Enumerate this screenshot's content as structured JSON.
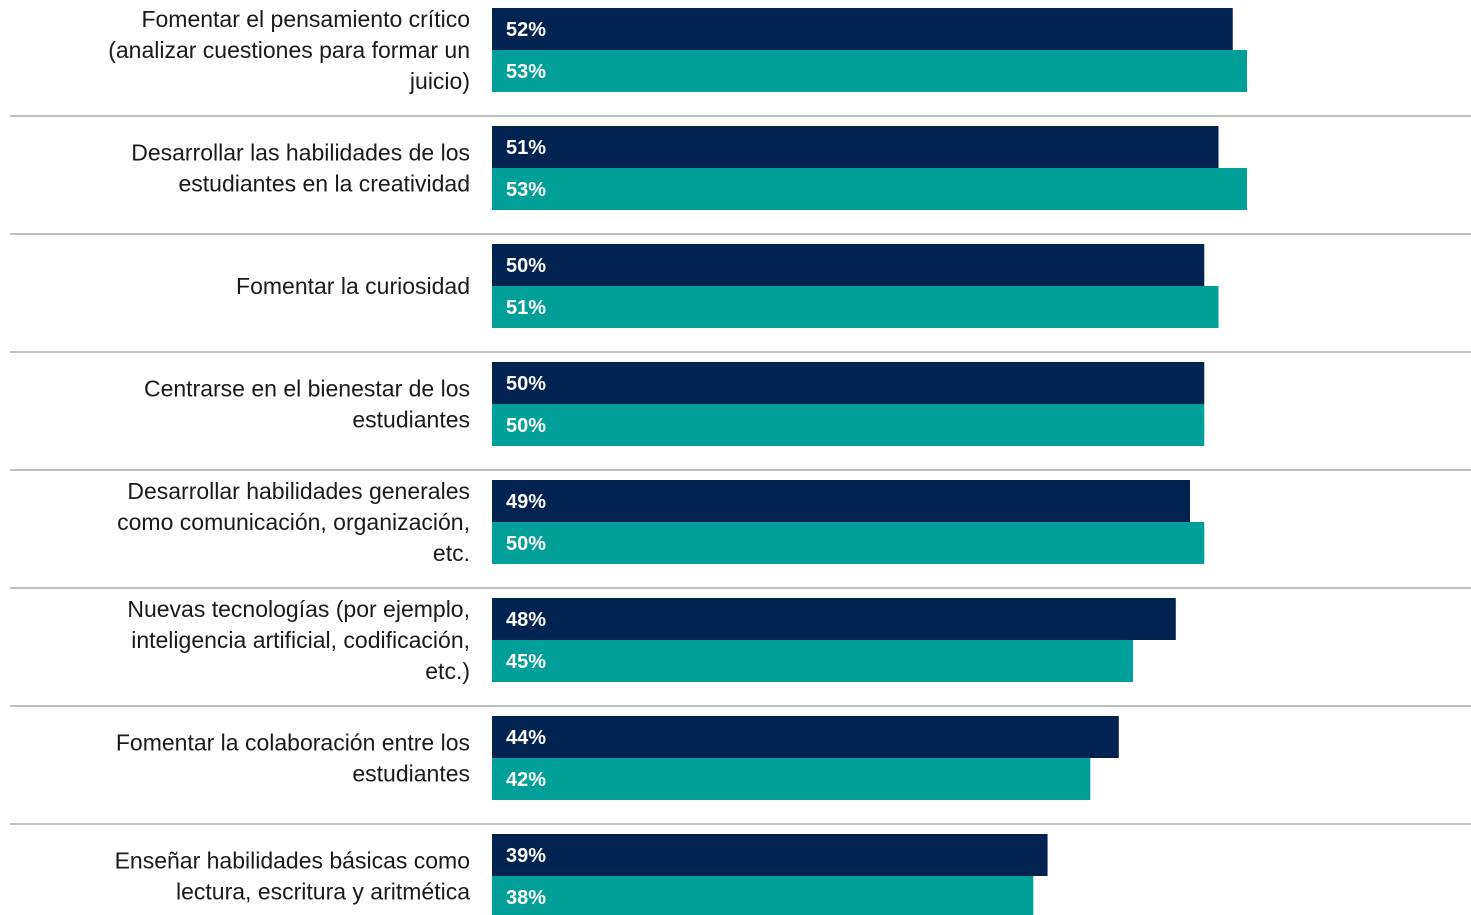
{
  "chart_data": {
    "type": "bar",
    "orientation": "horizontal",
    "categories": [
      "Fomentar el pensamiento crítico (analizar cuestiones para formar un juicio)",
      "Desarrollar las habilidades de los estudiantes en la creatividad",
      "Fomentar la curiosidad",
      "Centrarse en el bienestar de los estudiantes",
      "Desarrollar habilidades generales como comunicación, organización, etc.",
      "Nuevas tecnologías (por ejemplo, inteligencia artificial, codificación, etc.)",
      "Fomentar la colaboración entre los estudiantes",
      "Enseñar habilidades básicas como lectura, escritura y aritmética"
    ],
    "category_lines": [
      [
        "Fomentar el pensamiento crítico",
        "(analizar cuestiones para formar un",
        "juicio)"
      ],
      [
        "Desarrollar las habilidades de los",
        "estudiantes en la creatividad"
      ],
      [
        "Fomentar la curiosidad"
      ],
      [
        "Centrarse en el bienestar de los",
        "estudiantes"
      ],
      [
        "Desarrollar habilidades generales",
        "como comunicación, organización,",
        "etc."
      ],
      [
        "Nuevas tecnologías (por ejemplo,",
        "inteligencia artificial, codificación,",
        "etc.)"
      ],
      [
        "Fomentar la colaboración entre los",
        "estudiantes"
      ],
      [
        "Enseñar habilidades básicas como",
        "lectura, escritura y aritmética"
      ]
    ],
    "series": [
      {
        "values": [
          52,
          51,
          50,
          50,
          49,
          48,
          44,
          39
        ],
        "labels": [
          "52%",
          "51%",
          "50%",
          "50%",
          "49%",
          "48%",
          "44%",
          "39%"
        ],
        "color": "#002352"
      },
      {
        "values": [
          53,
          53,
          51,
          50,
          50,
          45,
          42,
          38
        ],
        "labels": [
          "53%",
          "53%",
          "51%",
          "50%",
          "50%",
          "45%",
          "42%",
          "38%"
        ],
        "color": "#009f9a"
      }
    ],
    "xlim": [
      0,
      100
    ],
    "grid": false,
    "legend": "none",
    "separator_color": "#bfbfbf"
  }
}
